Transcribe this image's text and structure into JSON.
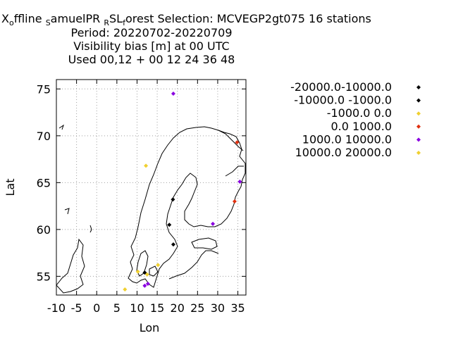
{
  "title": {
    "line1_parts": [
      "X",
      "o",
      "ffline ",
      "S",
      "amuelPR ",
      "R",
      "SL",
      "f",
      "orest   Selection: MCVEGP2gt075     16 stations"
    ],
    "line2": "Period: 20220702-20220709",
    "line3": "Visibility bias [m] at  00 UTC",
    "line4": "Used  00,12  + 00 12 24 36 48"
  },
  "chart_data": {
    "type": "scatter",
    "xlabel": "Lon",
    "ylabel": "Lat",
    "xlim": [
      -10,
      37
    ],
    "ylim": [
      53,
      76
    ],
    "xticks": [
      -10,
      -5,
      0,
      5,
      10,
      15,
      20,
      25,
      30,
      35
    ],
    "yticks": [
      55,
      60,
      65,
      70,
      75
    ],
    "grid": true,
    "legend_position": "right",
    "series": [
      {
        "name": "-20000.0-10000.0",
        "color": "#000000",
        "points": []
      },
      {
        "name": "-10000.0 -1000.0",
        "color": "#000000",
        "points": [
          [
            18.9,
            63.2
          ],
          [
            18.0,
            60.5
          ],
          [
            19.0,
            58.4
          ],
          [
            11.9,
            55.4
          ]
        ]
      },
      {
        "name": "-1000.0 0.0",
        "color": "#f0d030",
        "points": [
          [
            12.2,
            66.8
          ],
          [
            15.2,
            56.2
          ],
          [
            7.0,
            53.6
          ]
        ]
      },
      {
        "name": "0.0 1000.0",
        "color": "#e03010",
        "points": [
          [
            34.8,
            69.3
          ],
          [
            34.2,
            63.0
          ]
        ]
      },
      {
        "name": "1000.0 10000.0",
        "color": "#8a00e0",
        "points": [
          [
            19.0,
            74.5
          ],
          [
            35.5,
            65.1
          ],
          [
            28.8,
            60.6
          ],
          [
            12.7,
            54.2
          ],
          [
            11.9,
            54.0
          ]
        ]
      },
      {
        "name": "10000.0 20000.0",
        "color": "#f0d030",
        "points": [
          [
            10.2,
            55.5
          ],
          [
            12.5,
            55.2
          ]
        ]
      }
    ]
  }
}
